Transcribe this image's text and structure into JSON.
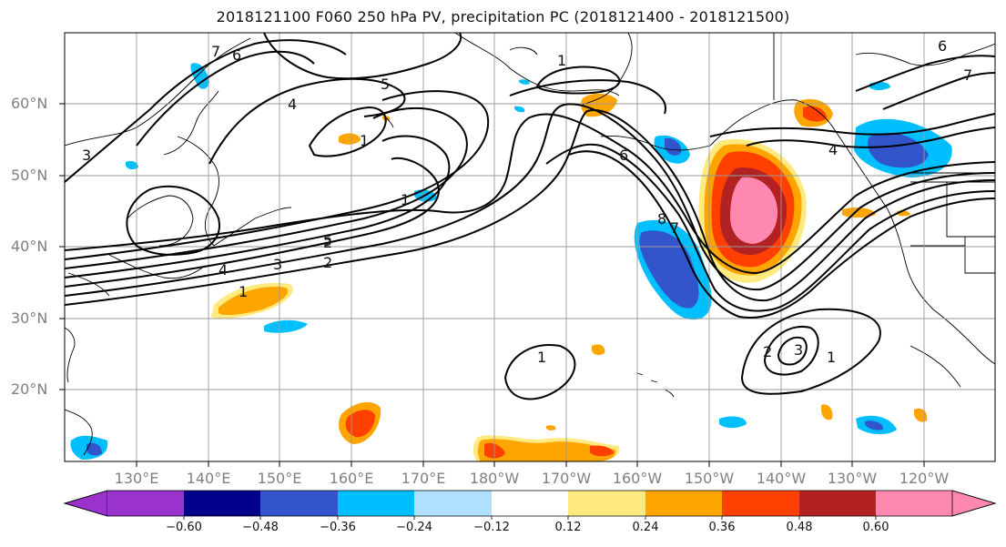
{
  "title": "2018121100 F060 250 hPa PV, precipitation PC (2018121400 - 2018121500)",
  "map": {
    "lat_labels": [
      "60°N",
      "50°N",
      "40°N",
      "30°N",
      "20°N"
    ],
    "lon_labels": [
      "130°E",
      "140°E",
      "150°E",
      "160°E",
      "170°E",
      "180°W",
      "170°W",
      "160°W",
      "150°W",
      "140°W",
      "130°W",
      "120°W"
    ],
    "contour_labels": [
      "7",
      "6",
      "5",
      "4",
      "3",
      "2",
      "1",
      "5",
      "4",
      "3",
      "2",
      "1",
      "1",
      "6",
      "8",
      "7",
      "1",
      "2",
      "3",
      "1",
      "4",
      "6",
      "7",
      "1"
    ]
  },
  "colorbar": {
    "ticks": [
      "−0.60",
      "−0.48",
      "−0.36",
      "−0.24",
      "−0.12",
      "0.12",
      "0.24",
      "0.36",
      "0.48",
      "0.60"
    ],
    "colors": [
      "#9933cc",
      "#00008b",
      "#3355cc",
      "#00bfff",
      "#b0e0ff",
      "#ffffff",
      "#ffea80",
      "#ffa500",
      "#ff4000",
      "#b22222",
      "#ff88b0"
    ]
  }
}
